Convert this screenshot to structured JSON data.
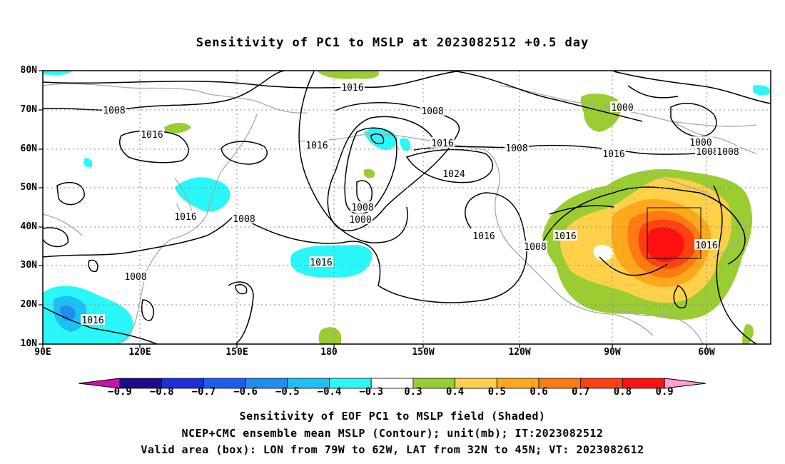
{
  "title": "Sensitivity of PC1 to MSLP at 2023082512 +0.5 day",
  "lat_labels": [
    "80N",
    "70N",
    "60N",
    "50N",
    "40N",
    "30N",
    "20N",
    "10N"
  ],
  "lon_labels": [
    "90E",
    "120E",
    "150E",
    "180",
    "150W",
    "120W",
    "90W",
    "60W"
  ],
  "contour_labels": [
    "1016",
    "1008",
    "1008",
    "1016",
    "1016",
    "1016",
    "1024",
    "1008",
    "1016",
    "1008",
    "1016",
    "1000",
    "1008",
    "1016",
    "1016",
    "1008",
    "1016",
    "1008",
    "1000",
    "1000",
    "1008",
    "1016",
    "1008",
    "1016"
  ],
  "colorbar": {
    "labels": [
      "-0.9",
      "-0.8",
      "-0.7",
      "-0.6",
      "-0.5",
      "-0.4",
      "-0.3",
      "0.3",
      "0.4",
      "0.5",
      "0.6",
      "0.7",
      "0.8",
      "0.9"
    ],
    "colors": [
      "#1a0c8a",
      "#1c2fd8",
      "#1c5ff0",
      "#1e8ff0",
      "#1cc0f4",
      "#2af8f8",
      "#ffffff",
      "#9acd32",
      "#ffd04a",
      "#ffa81c",
      "#ff7a10",
      "#ff4010",
      "#ff1010"
    ],
    "low_arrow_color": "#c814a8",
    "high_arrow_color": "#ff9ecf"
  },
  "captions": [
    "Sensitivity of EOF PC1 to MSLP field (Shaded)",
    "NCEP+CMC ensemble mean MSLP (Contour); unit(mb); IT:2023082512",
    "Valid area (box): LON from 79W to 62W, LAT from 32N to 45N; VT: 2023082612"
  ]
}
